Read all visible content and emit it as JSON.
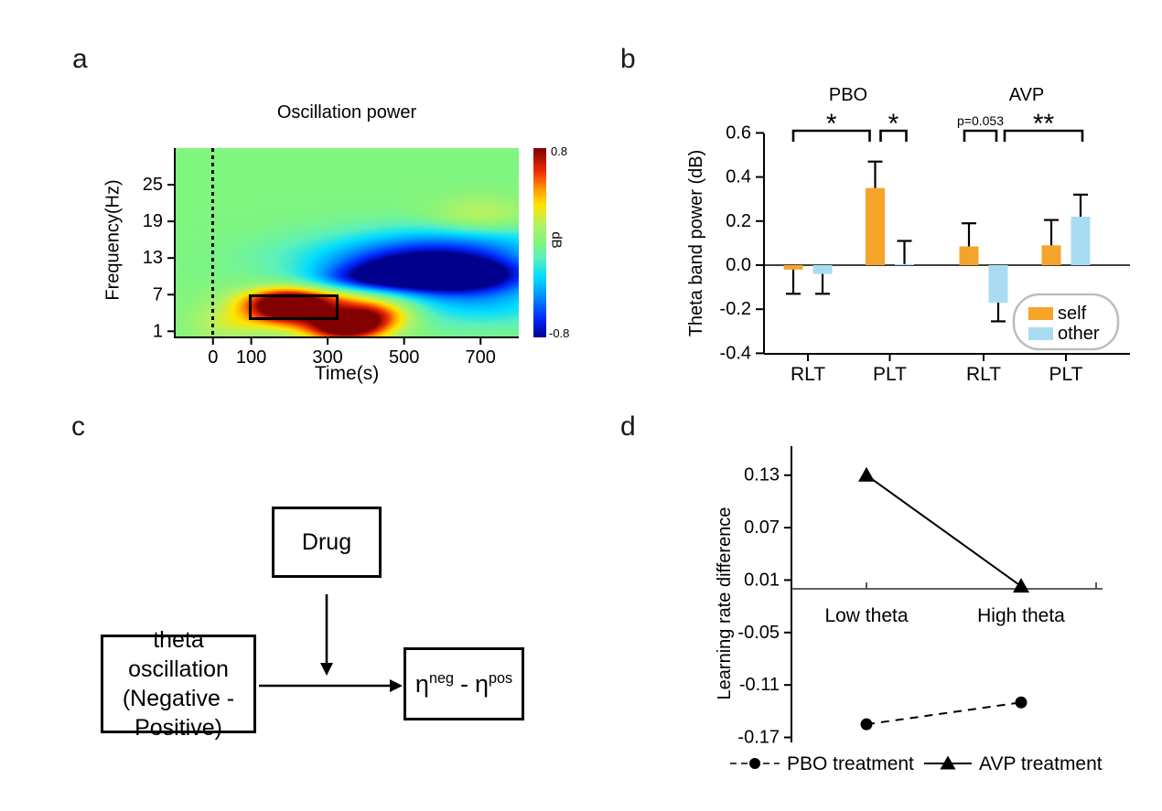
{
  "panel_a": {
    "label": "a",
    "title": "Oscillation power",
    "xlabel": "Time(s)",
    "ylabel": "Frequency(Hz)",
    "colorbar_label": "dB",
    "colorbar_max": "0.8",
    "colorbar_min": "-0.8"
  },
  "panel_b": {
    "label": "b"
  },
  "panel_c": {
    "label": "c",
    "box_drug": "Drug",
    "box_theta_lines": [
      "theta oscillation",
      "(Negative -",
      "Positive)"
    ],
    "box_eta": {
      "base1": "η",
      "sup1": "neg",
      "sep": "-",
      "base2": "η",
      "sup2": "pos"
    }
  },
  "panel_d": {
    "label": "d"
  },
  "chart_data": [
    {
      "id": "a",
      "type": "heatmap",
      "title": "Oscillation power",
      "xlabel": "Time(s)",
      "ylabel": "Frequency(Hz)",
      "xlim": [
        -100,
        800
      ],
      "ylim": [
        0,
        31
      ],
      "xticks": [
        "0",
        "100",
        "300",
        "500",
        "700"
      ],
      "yticks": [
        "1",
        "7",
        "13",
        "19",
        "25"
      ],
      "colorbar": {
        "label": "dB",
        "min": -0.8,
        "max": 0.8
      },
      "event_line_t": 0,
      "roi_rect": {
        "t": [
          100,
          300
        ],
        "f": [
          4,
          7
        ]
      },
      "blobs": [
        {
          "t": 185,
          "f": 4.8,
          "st": 70,
          "sf": 1.9,
          "amp": 0.9
        },
        {
          "t": 345,
          "f": 2.0,
          "st": 75,
          "sf": 1.8,
          "amp": 1.05
        },
        {
          "t": 260,
          "f": 6.3,
          "st": 120,
          "sf": 1.5,
          "amp": 0.5
        },
        {
          "t": 430,
          "f": 4.0,
          "st": 70,
          "sf": 1.7,
          "amp": 0.45
        },
        {
          "t": 40,
          "f": 2.5,
          "st": 70,
          "sf": 2.0,
          "amp": 0.2
        },
        {
          "t": 600,
          "f": 10.2,
          "st": 160,
          "sf": 2.1,
          "amp": -1.05
        },
        {
          "t": 500,
          "f": 13.0,
          "st": 200,
          "sf": 2.8,
          "amp": -0.45
        },
        {
          "t": 680,
          "f": 15.5,
          "st": 180,
          "sf": 2.5,
          "amp": -0.28
        },
        {
          "t": 700,
          "f": 5.5,
          "st": 160,
          "sf": 2.5,
          "amp": -0.3
        },
        {
          "t": 700,
          "f": 19.8,
          "st": 90,
          "sf": 2.2,
          "amp": 0.22
        },
        {
          "t": 380,
          "f": 9.5,
          "st": 90,
          "sf": 1.4,
          "amp": -0.25
        }
      ]
    },
    {
      "id": "b",
      "type": "bar",
      "ylabel": "Theta band power (dB)",
      "ylim": [
        -0.4,
        0.6
      ],
      "yticks": [
        "0.6",
        "0.4",
        "0.2",
        "0.0",
        "-0.2",
        "-0.4"
      ],
      "group_labels": [
        "PBO",
        "AVP"
      ],
      "categories": [
        "RLT",
        "PLT",
        "RLT",
        "PLT"
      ],
      "series": [
        {
          "name": "self",
          "color": "#F5A42A",
          "values": [
            -0.02,
            0.35,
            0.085,
            0.09
          ],
          "errors": [
            0.11,
            0.12,
            0.105,
            0.115
          ]
        },
        {
          "name": "other",
          "color": "#A9DCF2",
          "values": [
            -0.04,
            0.005,
            -0.17,
            0.22
          ],
          "errors": [
            0.09,
            0.105,
            0.085,
            0.1
          ]
        }
      ],
      "significance": [
        {
          "label": "*",
          "from": [
            0,
            0
          ],
          "to": [
            1,
            0
          ],
          "dx1": 0,
          "dx2": -6,
          "small": false
        },
        {
          "label": "*",
          "from": [
            1,
            0
          ],
          "to": [
            1,
            1
          ],
          "dx1": 6,
          "dx2": 2,
          "small": false
        },
        {
          "label": "p=0.053",
          "from": [
            2,
            0
          ],
          "to": [
            2,
            1
          ],
          "dx1": -5,
          "dx2": -2,
          "small": true
        },
        {
          "label": "**",
          "from": [
            2,
            1
          ],
          "to": [
            3,
            1
          ],
          "dx1": 7,
          "dx2": 2,
          "small": false
        }
      ],
      "legend": {
        "items": [
          {
            "label": "self",
            "color": "#F5A42A"
          },
          {
            "label": "other",
            "color": "#A9DCF2"
          }
        ]
      }
    },
    {
      "id": "d",
      "type": "line",
      "ylabel": "Learning rate difference",
      "categories": [
        "Low theta",
        "High theta"
      ],
      "yticks": [
        "0.13",
        "0.07",
        "0.01",
        "-0.05",
        "-0.11",
        "-0.17"
      ],
      "series": [
        {
          "name": "PBO treatment",
          "line": "dashed",
          "marker": "circle",
          "values": [
            -0.155,
            -0.13
          ]
        },
        {
          "name": "AVP treatment",
          "line": "solid",
          "marker": "triangle",
          "values": [
            0.13,
            0.003
          ]
        }
      ]
    }
  ]
}
